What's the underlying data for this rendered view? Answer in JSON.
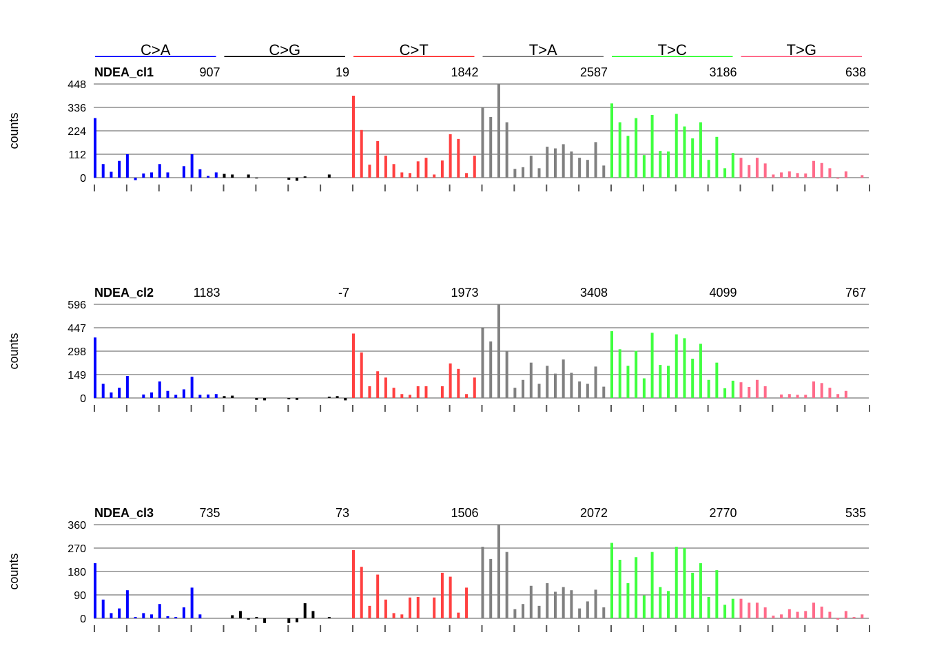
{
  "chart_data": {
    "type": "bar",
    "categories": [
      "C>A",
      "C>G",
      "C>T",
      "T>A",
      "T>C",
      "T>G"
    ],
    "category_colors": [
      "#0000ff",
      "#000000",
      "#ff4040",
      "#808080",
      "#40ff40",
      "#ff6b8a"
    ],
    "bars_per_category": 16,
    "ylabel": "counts",
    "grid": true,
    "panels": [
      {
        "title": "NDEA_cl1",
        "totals": [
          "907",
          "19",
          "1842",
          "2587",
          "3186",
          "638"
        ],
        "yticks": [
          "0",
          "112",
          "224",
          "336",
          "448"
        ],
        "ylim": [
          0,
          448
        ],
        "values": [
          285,
          65,
          28,
          80,
          112,
          -12,
          20,
          25,
          65,
          25,
          0,
          55,
          112,
          40,
          8,
          25,
          18,
          15,
          0,
          15,
          -4,
          0,
          0,
          0,
          -10,
          -15,
          6,
          0,
          0,
          15,
          0,
          0,
          392,
          228,
          62,
          175,
          105,
          65,
          25,
          22,
          78,
          95,
          15,
          82,
          208,
          185,
          22,
          105,
          338,
          290,
          448,
          265,
          42,
          50,
          105,
          45,
          148,
          140,
          160,
          125,
          95,
          85,
          170,
          58,
          355,
          265,
          200,
          285,
          108,
          300,
          128,
          125,
          305,
          245,
          188,
          265,
          85,
          195,
          45,
          118,
          95,
          60,
          95,
          68,
          15,
          25,
          30,
          22,
          20,
          80,
          70,
          45,
          -5,
          30,
          0,
          12
        ]
      },
      {
        "title": "NDEA_cl2",
        "totals": [
          "1183",
          "-7",
          "1973",
          "3408",
          "4099",
          "767"
        ],
        "yticks": [
          "0",
          "149",
          "298",
          "447",
          "596"
        ],
        "ylim": [
          0,
          596
        ],
        "values": [
          385,
          90,
          35,
          65,
          140,
          0,
          22,
          35,
          105,
          45,
          20,
          55,
          135,
          20,
          22,
          25,
          12,
          15,
          0,
          0,
          -12,
          -15,
          0,
          0,
          -8,
          -12,
          0,
          0,
          0,
          8,
          12,
          -15,
          410,
          290,
          75,
          170,
          130,
          65,
          25,
          20,
          75,
          75,
          0,
          75,
          220,
          185,
          25,
          130,
          445,
          360,
          596,
          295,
          65,
          115,
          225,
          90,
          205,
          155,
          245,
          160,
          105,
          90,
          200,
          72,
          425,
          310,
          205,
          300,
          125,
          415,
          210,
          205,
          405,
          380,
          250,
          345,
          115,
          225,
          62,
          110,
          100,
          70,
          115,
          75,
          0,
          22,
          25,
          20,
          20,
          105,
          95,
          65,
          25,
          45,
          0,
          0
        ]
      },
      {
        "title": "NDEA_cl3",
        "totals": [
          "735",
          "73",
          "1506",
          "2072",
          "2770",
          "535"
        ],
        "yticks": [
          "0",
          "90",
          "180",
          "270",
          "360"
        ],
        "ylim": [
          0,
          360
        ],
        "values": [
          212,
          72,
          20,
          38,
          108,
          5,
          20,
          15,
          55,
          8,
          5,
          42,
          118,
          15,
          0,
          0,
          0,
          12,
          28,
          -5,
          5,
          -18,
          0,
          0,
          -18,
          -15,
          58,
          28,
          0,
          5,
          0,
          0,
          262,
          198,
          48,
          168,
          72,
          20,
          15,
          80,
          82,
          0,
          80,
          175,
          160,
          22,
          118,
          0,
          275,
          228,
          360,
          255,
          35,
          55,
          125,
          48,
          135,
          102,
          120,
          108,
          38,
          65,
          110,
          42,
          290,
          225,
          135,
          235,
          88,
          255,
          120,
          105,
          275,
          270,
          175,
          212,
          82,
          185,
          52,
          75,
          75,
          60,
          60,
          42,
          10,
          15,
          35,
          25,
          28,
          60,
          45,
          25,
          -5,
          28,
          5,
          15
        ]
      }
    ]
  }
}
